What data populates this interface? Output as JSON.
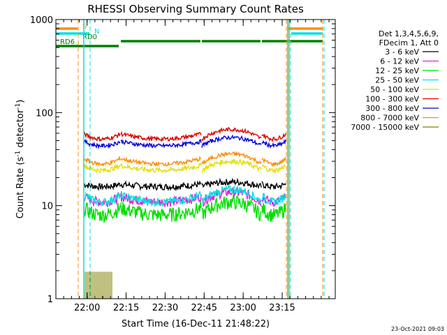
{
  "chart_data": {
    "type": "line",
    "title": "RHESSI Observing Summary Count Rates",
    "xlabel": "Start Time (16-Dec-11 21:48:22)",
    "ylabel": "Count Rate (s⁻¹ detector⁻¹)",
    "ylabel_main": "Count Rate (s",
    "ylabel_mid": " detector",
    "ylabel_end": ")",
    "ylabel_sup": "-1",
    "yscale": "log",
    "ylim": [
      1,
      1000
    ],
    "xlim_minutes": [
      21.8,
      23.59
    ],
    "x_ticks": [
      {
        "label": "22:00",
        "value": 22.0
      },
      {
        "label": "22:15",
        "value": 22.25
      },
      {
        "label": "22:30",
        "value": 22.5
      },
      {
        "label": "22:45",
        "value": 22.75
      },
      {
        "label": "23:00",
        "value": 23.0
      },
      {
        "label": "23:15",
        "value": 23.25
      }
    ],
    "y_ticks": [
      {
        "label": "1",
        "value": 1
      },
      {
        "label": "10",
        "value": 10
      },
      {
        "label": "100",
        "value": 100
      },
      {
        "label": "1000",
        "value": 1000
      }
    ],
    "legend_header": [
      "Det 1,3,4,5,6,9,",
      "FDecim 1, Att 0"
    ],
    "legend_placement": "right",
    "series": [
      {
        "name": "3 - 6 keV",
        "color": "#000000",
        "base": 16,
        "amp": 2,
        "noise": 0.08
      },
      {
        "name": "6 - 12 keV",
        "color": "#e020e0",
        "base": 11,
        "amp": 3,
        "noise": 0.12
      },
      {
        "name": "12 - 25 keV",
        "color": "#00e000",
        "base": 8,
        "amp": 3,
        "noise": 0.18
      },
      {
        "name": "25 - 50 keV",
        "color": "#00e0e0",
        "base": 11,
        "amp": 4,
        "noise": 0.1
      },
      {
        "name": "50 - 100 keV",
        "color": "#e0e000",
        "base": 24,
        "amp": 6,
        "noise": 0.06
      },
      {
        "name": "100 - 300 keV",
        "color": "#e00000",
        "base": 52,
        "amp": 14,
        "noise": 0.05
      },
      {
        "name": "300 - 800 keV",
        "color": "#0000e0",
        "base": 44,
        "amp": 10,
        "noise": 0.05
      },
      {
        "name": "800 - 7000 keV",
        "color": "#ff8c00",
        "base": 28,
        "amp": 8,
        "noise": 0.05
      },
      {
        "name": "7000 - 15000 keV",
        "color": "#808000",
        "base": 1.6,
        "amp": 0,
        "noise": 0.1
      }
    ],
    "flags": [
      {
        "name": "S",
        "color": "#ff8c00"
      },
      {
        "name": "N",
        "color": "#00e0e0"
      },
      {
        "name": "RD0",
        "color": "#008000"
      },
      {
        "name": "RD6",
        "color": "#008000"
      }
    ]
  },
  "footer_date": "23-Oct-2021 09:03"
}
